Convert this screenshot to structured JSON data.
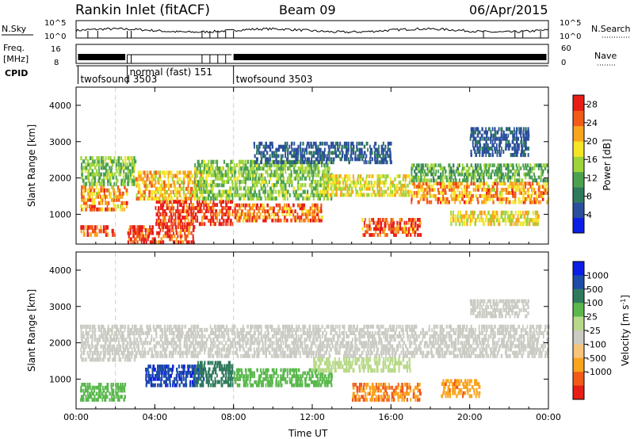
{
  "header": {
    "station": "Rankin Inlet (fitACF)",
    "beam": "Beam 09",
    "date": "06/Apr/2015"
  },
  "strips": {
    "nsky": {
      "label": "N.Sky",
      "ticks": [
        "10^5",
        "10^0"
      ],
      "right_label": "N.Search",
      "right_ticks": [
        "10^5",
        "10^0"
      ]
    },
    "freq": {
      "label_line1": "Freq.",
      "label_line2": "[MHz]",
      "ticks": [
        "16",
        "8"
      ],
      "right_label": "Nave",
      "right_ticks": [
        "60",
        "0"
      ]
    },
    "cpid": {
      "label": "CPID",
      "programs": [
        {
          "name": "twofsound 3503",
          "start_hour": 0.1
        },
        {
          "name": "normal (fast) 151",
          "start_hour": 2.6
        },
        {
          "name": "twofsound 3503",
          "start_hour": 8.0
        }
      ]
    }
  },
  "colors": {
    "power_scale": [
      "#0a1ee6",
      "#2a4f9c",
      "#2f7a5c",
      "#4ca14e",
      "#9ed43a",
      "#f4e526",
      "#f8a41d",
      "#f25a18",
      "#e81d16"
    ],
    "velocity_scale": [
      "#e81d16",
      "#f25a18",
      "#f8a41d",
      "#f6c47a",
      "#cbcbc4",
      "#b9d98a",
      "#5ab84c",
      "#2f7a5c",
      "#1d4ba8",
      "#0a1ee6"
    ]
  },
  "chart_data": [
    {
      "type": "heatmap",
      "name": "power",
      "ylabel": "Slant Range [km]",
      "xlabel": "",
      "x_ticks": [
        "00:00",
        "04:00",
        "08:00",
        "12:00",
        "16:00",
        "20:00",
        "00:00"
      ],
      "y_ticks": [
        "1000",
        "2000",
        "3000",
        "4000"
      ],
      "xlim": [
        0,
        24
      ],
      "ylim": [
        180,
        4500
      ],
      "colorbar": {
        "label": "Power [dB]",
        "ticks": [
          "4",
          "8",
          "12",
          "16",
          "20",
          "24",
          "28"
        ],
        "range": [
          0,
          30
        ]
      },
      "regions": [
        {
          "x": [
            0.2,
            2.0
          ],
          "y": [
            400,
            700
          ],
          "value": 27
        },
        {
          "x": [
            0.2,
            2.6
          ],
          "y": [
            1100,
            1800
          ],
          "value": 22
        },
        {
          "x": [
            0.2,
            3.0
          ],
          "y": [
            1800,
            2600
          ],
          "value": 14
        },
        {
          "x": [
            2.6,
            6.0
          ],
          "y": [
            200,
            700
          ],
          "value": 27
        },
        {
          "x": [
            4.0,
            8.0
          ],
          "y": [
            700,
            1400
          ],
          "value": 28
        },
        {
          "x": [
            3.0,
            6.5
          ],
          "y": [
            1400,
            2200
          ],
          "value": 20
        },
        {
          "x": [
            8.0,
            12.5
          ],
          "y": [
            800,
            1300
          ],
          "value": 24
        },
        {
          "x": [
            6.0,
            13.0
          ],
          "y": [
            1400,
            2500
          ],
          "value": 14
        },
        {
          "x": [
            12.5,
            17.0
          ],
          "y": [
            1500,
            2100
          ],
          "value": 18
        },
        {
          "x": [
            14.5,
            17.5
          ],
          "y": [
            400,
            900
          ],
          "value": 26
        },
        {
          "x": [
            17.0,
            24.0
          ],
          "y": [
            1300,
            1900
          ],
          "value": 22
        },
        {
          "x": [
            17.0,
            24.0
          ],
          "y": [
            1900,
            2400
          ],
          "value": 12
        },
        {
          "x": [
            19.0,
            23.5
          ],
          "y": [
            700,
            1100
          ],
          "value": 18
        },
        {
          "x": [
            20.0,
            23.0
          ],
          "y": [
            2600,
            3400
          ],
          "value": 6
        },
        {
          "x": [
            9.0,
            16.0
          ],
          "y": [
            2400,
            3000
          ],
          "value": 6
        }
      ]
    },
    {
      "type": "heatmap",
      "name": "velocity",
      "ylabel": "Slant Range [km]",
      "xlabel": "Time UT",
      "x_ticks": [
        "00:00",
        "04:00",
        "08:00",
        "12:00",
        "16:00",
        "20:00",
        "00:00"
      ],
      "y_ticks": [
        "1000",
        "2000",
        "3000",
        "4000"
      ],
      "xlim": [
        0,
        24
      ],
      "ylim": [
        180,
        4500
      ],
      "colorbar": {
        "label": "Velocity [m s^-1]",
        "ticks": [
          "1000",
          "500",
          "100",
          "25",
          "-25",
          "-100",
          "-500",
          "-1000"
        ]
      },
      "regions": [
        {
          "x": [
            0.2,
            2.5
          ],
          "y": [
            400,
            900
          ],
          "value": 200
        },
        {
          "x": [
            0.2,
            3.0
          ],
          "y": [
            1500,
            2500
          ],
          "value": 0
        },
        {
          "x": [
            3.5,
            6.5
          ],
          "y": [
            800,
            1400
          ],
          "value": 800
        },
        {
          "x": [
            6.0,
            8.0
          ],
          "y": [
            800,
            1500
          ],
          "value": 400
        },
        {
          "x": [
            3.0,
            24.0
          ],
          "y": [
            1600,
            2500
          ],
          "value": 0
        },
        {
          "x": [
            8.0,
            13.0
          ],
          "y": [
            800,
            1300
          ],
          "value": 150
        },
        {
          "x": [
            14.0,
            17.5
          ],
          "y": [
            400,
            900
          ],
          "value": -300
        },
        {
          "x": [
            18.5,
            20.5
          ],
          "y": [
            500,
            1000
          ],
          "value": -250
        },
        {
          "x": [
            20.0,
            23.0
          ],
          "y": [
            2700,
            3200
          ],
          "value": 0
        },
        {
          "x": [
            12.0,
            17.0
          ],
          "y": [
            1200,
            1600
          ],
          "value": 40
        }
      ]
    }
  ]
}
